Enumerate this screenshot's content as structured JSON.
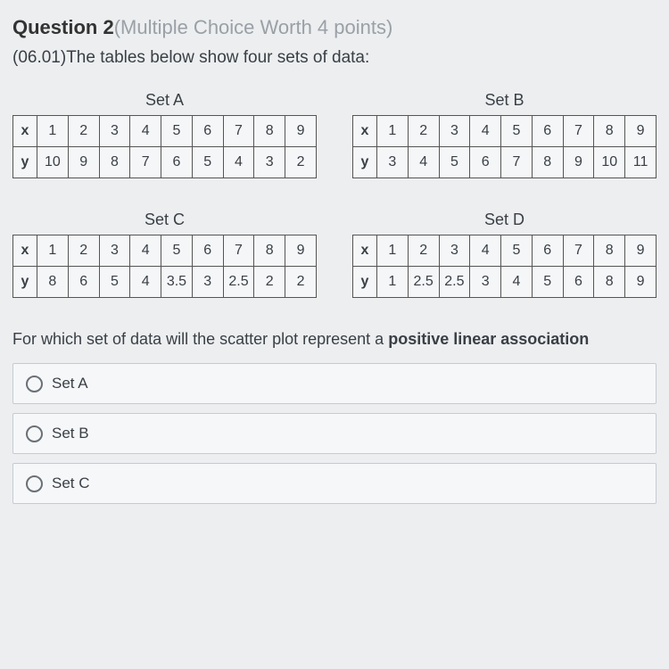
{
  "title_prefix": "Question 2",
  "title_suffix": "(Multiple Choice Worth 4 points)",
  "stem": "(06.01)The tables below show four sets of data:",
  "x_header": "x",
  "y_header": "y",
  "sets": {
    "A": {
      "label": "Set A",
      "x": [
        "1",
        "2",
        "3",
        "4",
        "5",
        "6",
        "7",
        "8",
        "9"
      ],
      "y": [
        "10",
        "9",
        "8",
        "7",
        "6",
        "5",
        "4",
        "3",
        "2"
      ]
    },
    "B": {
      "label": "Set B",
      "x": [
        "1",
        "2",
        "3",
        "4",
        "5",
        "6",
        "7",
        "8",
        "9"
      ],
      "y": [
        "3",
        "4",
        "5",
        "6",
        "7",
        "8",
        "9",
        "10",
        "11"
      ]
    },
    "C": {
      "label": "Set C",
      "x": [
        "1",
        "2",
        "3",
        "4",
        "5",
        "6",
        "7",
        "8",
        "9"
      ],
      "y": [
        "8",
        "6",
        "5",
        "4",
        "3.5",
        "3",
        "2.5",
        "2",
        "2"
      ]
    },
    "D": {
      "label": "Set D",
      "x": [
        "1",
        "2",
        "3",
        "4",
        "5",
        "6",
        "7",
        "8",
        "9"
      ],
      "y": [
        "1",
        "2.5",
        "2.5",
        "3",
        "4",
        "5",
        "6",
        "8",
        "9"
      ]
    }
  },
  "prompt_pre": "For which set of data will the scatter plot represent a ",
  "prompt_bold": "positive linear association",
  "choices": [
    "Set A",
    "Set B",
    "Set C"
  ],
  "style": {
    "background": "#eceef0",
    "text_color": "#3a3f45",
    "muted_color": "#9aa0a6",
    "border_color": "#555",
    "choice_border": "#c6cbd1",
    "choice_bg": "#f5f7f9",
    "title_fontsize": 22,
    "stem_fontsize": 19,
    "table_fontsize": 16,
    "prompt_fontsize": 18,
    "choice_fontsize": 17
  }
}
